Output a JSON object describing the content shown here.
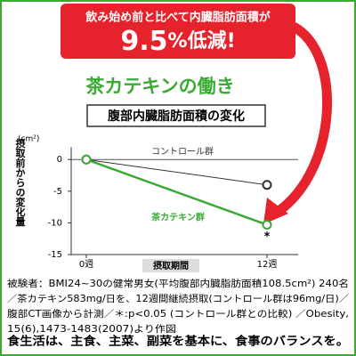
{
  "banner": {
    "line1": "飲み始め前と比べて内臓脂肪面積が",
    "number": "9.5",
    "rest": "%低減!"
  },
  "heading": "茶カテキンの働き",
  "chart_data": {
    "type": "line",
    "title": "腹部内臓脂肪面積の変化",
    "unit": "(cm²)",
    "y_label": "摂取前からの変化量",
    "x_label": "摂取期間",
    "categories": [
      "0週",
      "12週"
    ],
    "series": [
      {
        "name": "コントロール群",
        "color": "#333333",
        "values": [
          0,
          -4
        ]
      },
      {
        "name": "茶カテキン群",
        "color": "#3aaa35",
        "values": [
          0,
          -10.3
        ]
      }
    ],
    "ylim": [
      -15,
      2
    ],
    "yticks": [
      0,
      -5,
      -10,
      -15
    ],
    "annotation": "*"
  },
  "footnote": [
    "被験者：BMI24~30の健常男女(平均腹部内臓脂肪面積108.5cm²) 240名",
    "／茶カテキン583mg/日を、12週間継続摂取(コントロール群は96mg/日)／",
    "腹部CT画像から計測／＊:p<0.05 (コントロール群との比較) ／Obesity,",
    "15(6),1473-1483(2007)より作図"
  ],
  "bottom_text": "食生活は、主食、主菜、副菜を基本に、食事のバランスを。"
}
